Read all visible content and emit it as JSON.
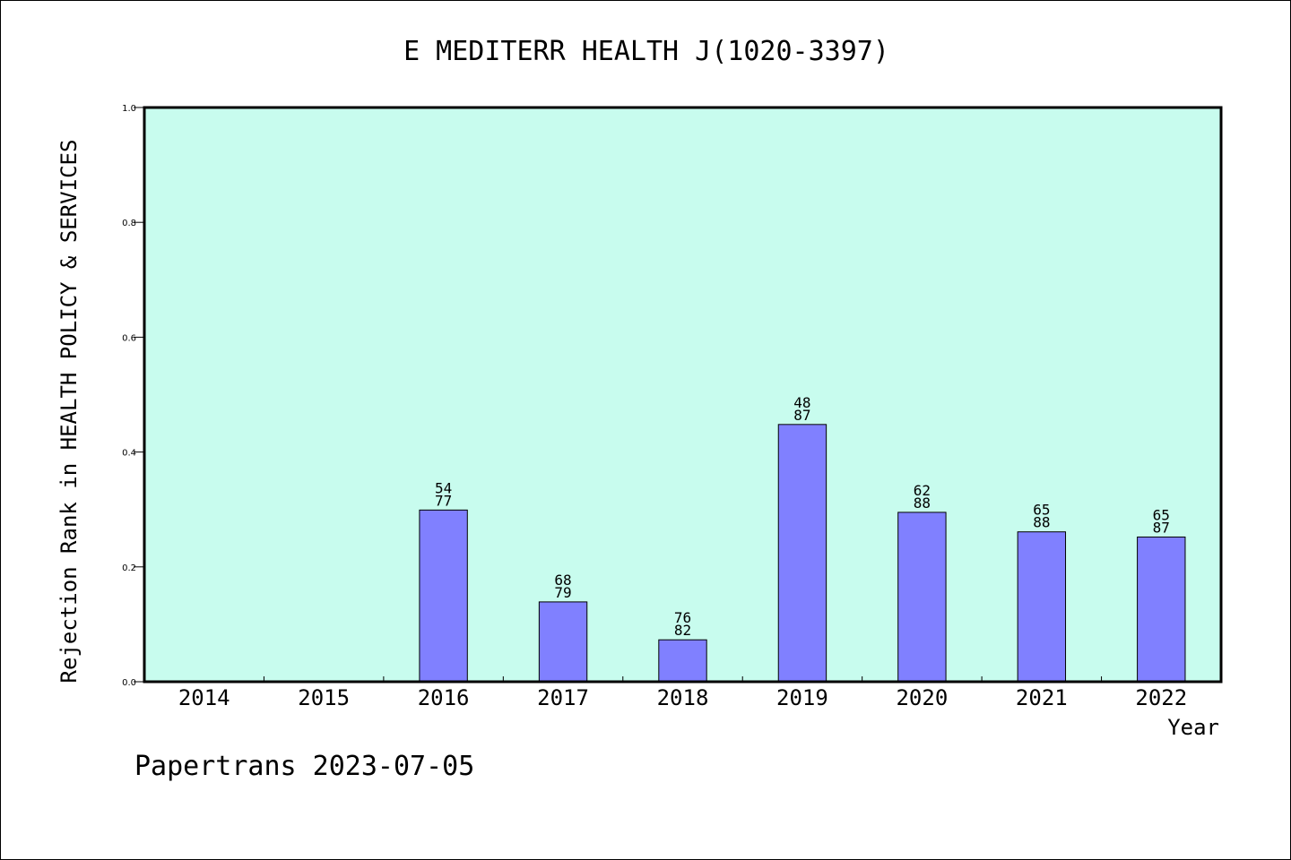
{
  "chart_data": {
    "type": "bar",
    "title": "E MEDITERR HEALTH J(1020-3397)",
    "xlabel": "Year",
    "ylabel": "Rejection Rank in HEALTH POLICY & SERVICES",
    "ylim": [
      0,
      1.0
    ],
    "yticks": [
      "0.0",
      "0.2",
      "0.4",
      "0.6",
      "0.8",
      "1.0"
    ],
    "categories": [
      "2014",
      "2015",
      "2016",
      "2017",
      "2018",
      "2019",
      "2020",
      "2021",
      "2022"
    ],
    "values": [
      null,
      null,
      0.299,
      0.139,
      0.073,
      0.448,
      0.295,
      0.261,
      0.252
    ],
    "bar_labels": [
      null,
      null,
      [
        "54",
        "77"
      ],
      [
        "68",
        "79"
      ],
      [
        "76",
        "82"
      ],
      [
        "48",
        "87"
      ],
      [
        "62",
        "88"
      ],
      [
        "65",
        "88"
      ],
      [
        "65",
        "87"
      ]
    ],
    "grid": false,
    "colors": {
      "plot_background": "#c8fcee",
      "bar": "#8080ff",
      "bar_edge": "#000000"
    }
  },
  "footer": {
    "text": "Papertrans 2023-07-05"
  }
}
